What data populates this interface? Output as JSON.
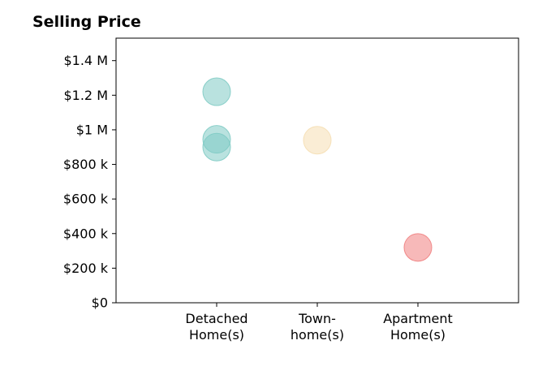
{
  "chart_data": {
    "type": "scatter",
    "title": "Selling Price",
    "xlabel": "",
    "ylabel": "",
    "categories": [
      "Detached Home(s)",
      "Town-home(s)",
      "Apartment Home(s)"
    ],
    "category_tick_lines": [
      [
        "Detached",
        "Home(s)"
      ],
      [
        "Town-",
        "home(s)"
      ],
      [
        "Apartment",
        "Home(s)"
      ]
    ],
    "points": [
      {
        "category": "Detached Home(s)",
        "value": 1220000,
        "color": "#80cbc4"
      },
      {
        "category": "Detached Home(s)",
        "value": 945000,
        "color": "#80cbc4"
      },
      {
        "category": "Detached Home(s)",
        "value": 900000,
        "color": "#80cbc4"
      },
      {
        "category": "Town-home(s)",
        "value": 940000,
        "color": "#f5deb3"
      },
      {
        "category": "Apartment Home(s)",
        "value": 320000,
        "color": "#f08080"
      }
    ],
    "ylim": [
      0,
      1530000
    ],
    "yticks": [
      0,
      200000,
      400000,
      600000,
      800000,
      1000000,
      1200000,
      1400000
    ],
    "ytick_labels": [
      "$0",
      "$200 k",
      "$400 k",
      "$600 k",
      "$800 k",
      "$1 M",
      "$1.2 M",
      "$1.4 M"
    ],
    "xlim": [
      -1,
      3
    ],
    "grid": false,
    "legend": "none"
  }
}
